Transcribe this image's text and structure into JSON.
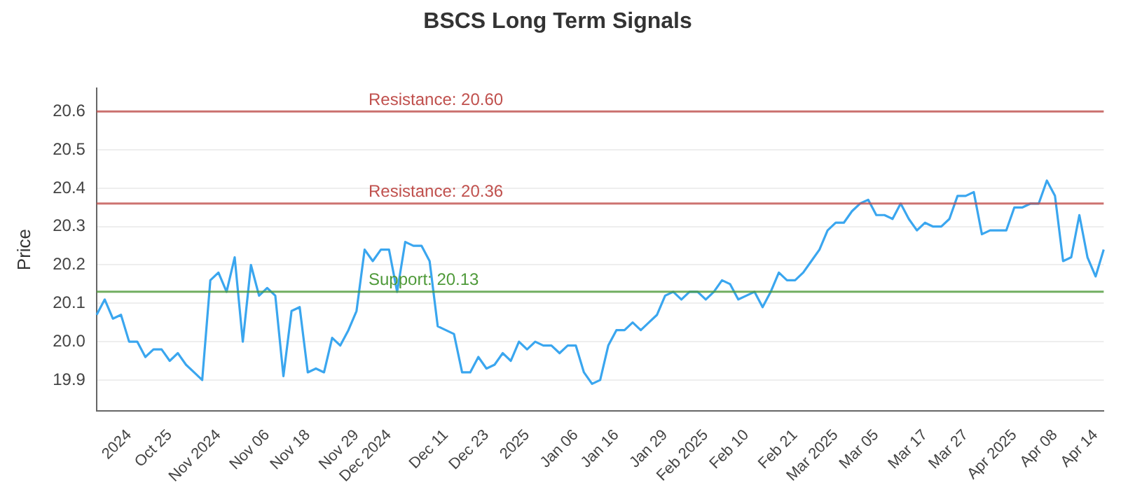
{
  "chart_data": {
    "type": "line",
    "title": "BSCS Long Term Signals",
    "ylabel": "Price",
    "categories": [
      null,
      null,
      null,
      null,
      "2024",
      null,
      null,
      null,
      null,
      "Oct 25",
      null,
      null,
      null,
      null,
      null,
      "Nov 2024",
      null,
      null,
      null,
      null,
      null,
      "Nov 06",
      null,
      null,
      null,
      null,
      "Nov 18",
      null,
      null,
      null,
      null,
      null,
      "Nov 29",
      null,
      null,
      null,
      "Dec 2024",
      null,
      null,
      null,
      null,
      null,
      null,
      "Dec 11",
      null,
      null,
      null,
      null,
      "Dec 23",
      null,
      null,
      null,
      null,
      "2025",
      null,
      null,
      null,
      null,
      null,
      "Jan 06",
      null,
      null,
      null,
      null,
      "Jan 16",
      null,
      null,
      null,
      null,
      null,
      "Jan 29",
      null,
      null,
      null,
      null,
      "Feb 2025",
      null,
      null,
      null,
      null,
      "Feb 10",
      null,
      null,
      null,
      null,
      null,
      "Feb 21",
      null,
      null,
      null,
      null,
      "Mar 2025",
      null,
      null,
      null,
      null,
      "Mar 05",
      null,
      null,
      null,
      null,
      null,
      "Mar 17",
      null,
      null,
      null,
      null,
      "Mar 27",
      null,
      null,
      null,
      null,
      null,
      "Apr 2025",
      null,
      null,
      null,
      null,
      "Apr 08",
      null,
      null,
      null,
      null,
      "Apr 14",
      null
    ],
    "series": [
      {
        "color": "#3aa6ef",
        "values": [
          20.07,
          20.11,
          20.06,
          20.07,
          20.0,
          20.0,
          19.96,
          19.98,
          19.98,
          19.95,
          19.97,
          19.94,
          19.92,
          19.9,
          20.16,
          20.18,
          20.13,
          20.22,
          20.0,
          20.2,
          20.12,
          20.14,
          20.12,
          19.91,
          20.08,
          20.09,
          19.92,
          19.93,
          19.92,
          20.01,
          19.99,
          20.03,
          20.08,
          20.24,
          20.21,
          20.24,
          20.24,
          20.13,
          20.26,
          20.25,
          20.25,
          20.21,
          20.04,
          20.03,
          20.02,
          19.92,
          19.92,
          19.96,
          19.93,
          19.94,
          19.97,
          19.95,
          20.0,
          19.98,
          20.0,
          19.99,
          19.99,
          19.97,
          19.99,
          19.99,
          19.92,
          19.89,
          19.9,
          19.99,
          20.03,
          20.03,
          20.05,
          20.03,
          20.05,
          20.07,
          20.12,
          20.13,
          20.11,
          20.13,
          20.13,
          20.11,
          20.13,
          20.16,
          20.15,
          20.11,
          20.12,
          20.13,
          20.09,
          20.13,
          20.18,
          20.16,
          20.16,
          20.18,
          20.21,
          20.24,
          20.29,
          20.31,
          20.31,
          20.34,
          20.36,
          20.37,
          20.33,
          20.33,
          20.32,
          20.36,
          20.32,
          20.29,
          20.31,
          20.3,
          20.3,
          20.32,
          20.38,
          20.38,
          20.39,
          20.28,
          20.29,
          20.29,
          20.29,
          20.35,
          20.35,
          20.36,
          20.36,
          20.42,
          20.38,
          20.21,
          20.22,
          20.33,
          20.22,
          20.17,
          20.24
        ]
      }
    ],
    "ylim": [
      19.82,
      20.66
    ],
    "yticks": [
      19.9,
      {
        "value": 20,
        "label": "20.0"
      },
      20.1,
      20.2,
      20.3,
      20.4,
      20.5,
      20.6
    ],
    "ref_lines": [
      {
        "axis": "y",
        "value": 20.6,
        "label": "Resistance: 20.60",
        "color": "#c0504d"
      },
      {
        "axis": "y",
        "value": 20.36,
        "label": "Resistance: 20.36",
        "color": "#c0504d"
      },
      {
        "axis": "y",
        "value": 20.13,
        "label": "Support: 20.13",
        "color": "#4f9a3a"
      }
    ],
    "grid": "y",
    "legend": false,
    "marker": "none",
    "line_style": "solid"
  }
}
